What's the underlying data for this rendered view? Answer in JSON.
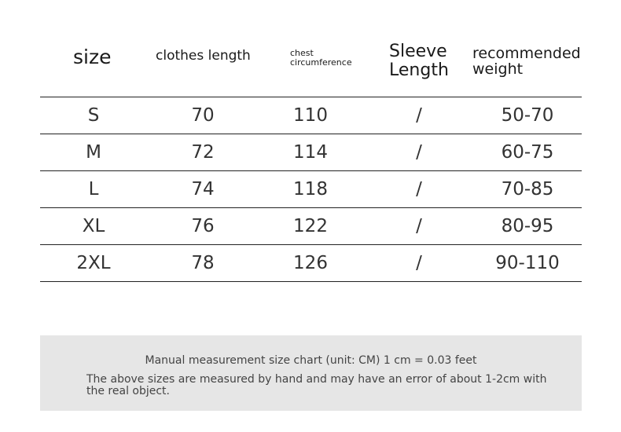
{
  "headers": {
    "size": "size",
    "clothes_length": "clothes length",
    "chest_line1": "chest",
    "chest_line2": "circumference",
    "sleeve_line1": "Sleeve",
    "sleeve_line2": "Length",
    "weight_line1": "recommended",
    "weight_line2": "weight"
  },
  "rows": [
    [
      "S",
      "70",
      "110",
      "/",
      "50-70"
    ],
    [
      "M",
      "72",
      "114",
      "/",
      "60-75"
    ],
    [
      "L",
      "74",
      "118",
      "/",
      "70-85"
    ],
    [
      "XL",
      "76",
      "122",
      "/",
      "80-95"
    ],
    [
      "2XL",
      "78",
      "126",
      "/",
      "90-110"
    ]
  ],
  "note": {
    "line1": "Manual measurement size chart (unit: CM) 1 cm = 0.03 feet",
    "line2": "The above sizes are measured by hand and may have an error of about 1-2cm with the real object."
  }
}
